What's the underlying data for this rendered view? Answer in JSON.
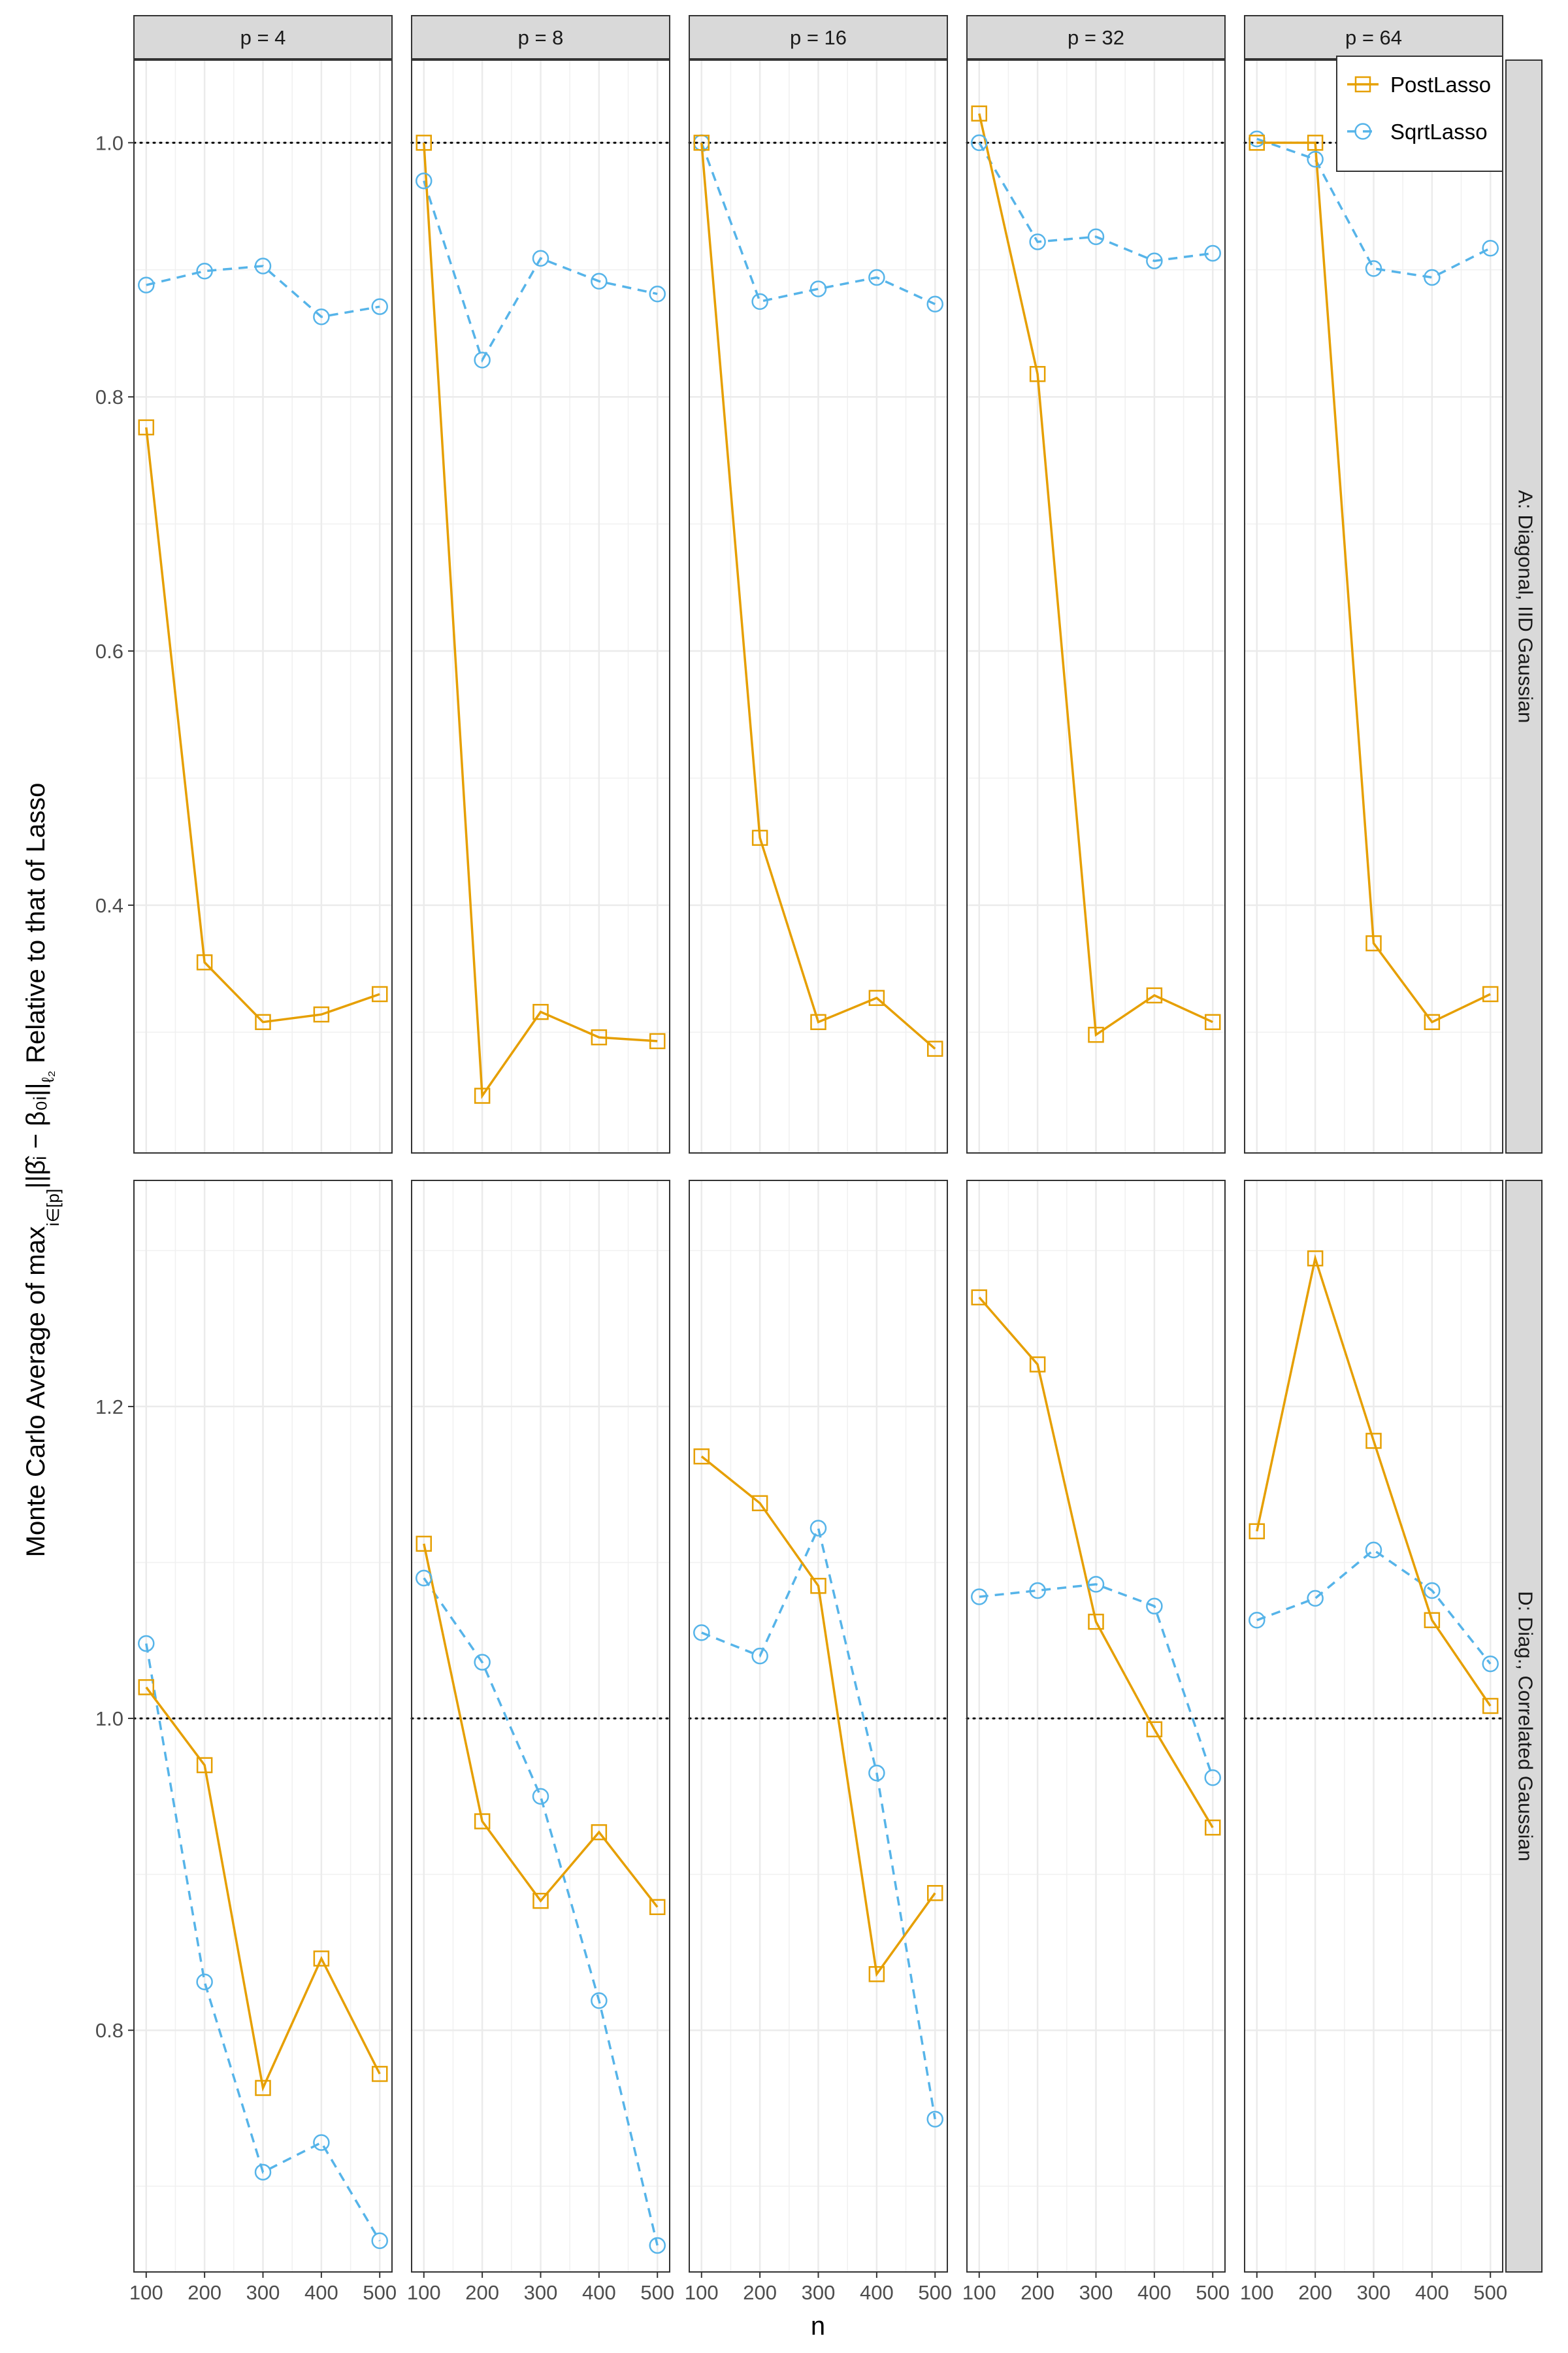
{
  "chart_data": {
    "type": "line",
    "xlabel": "n",
    "ylabel": {
      "prefix": "Monte Carlo Average of max",
      "subscript": "i∈[p]",
      "formula": "||β̂ᵢ − β₀ᵢ||",
      "norm": "ℓ₂",
      "suffix": " Relative to that of Lasso"
    },
    "columns": [
      "p = 4",
      "p = 8",
      "p = 16",
      "p = 32",
      "p = 64"
    ],
    "rows": [
      "A: Diagonal, IID Gaussian",
      "D: Diag., Correlated Gaussian"
    ],
    "x": [
      100,
      200,
      300,
      400,
      500
    ],
    "x_tick_labels": [
      "100",
      "200",
      "300",
      "400",
      "500"
    ],
    "reference_line": 1.0,
    "legend": {
      "placement": "top-right",
      "entries": [
        "PostLasso",
        "SqrtLasso"
      ]
    },
    "colors": {
      "PostLasso": "#E69F00",
      "SqrtLasso": "#56B4E9"
    },
    "row_axes": [
      {
        "ylim": [
          0.205,
          1.065
        ],
        "ticks": [
          0.4,
          0.6,
          0.8,
          1.0
        ],
        "tick_labels": [
          "0.4",
          "0.6",
          "0.8",
          "1.0"
        ]
      },
      {
        "ylim": [
          0.645,
          1.345
        ],
        "ticks": [
          0.8,
          1.0,
          1.2
        ],
        "tick_labels": [
          "0.8",
          "1.0",
          "1.2"
        ]
      }
    ],
    "panels": [
      {
        "row": 0,
        "col": 0,
        "PostLasso": [
          0.776,
          0.355,
          0.308,
          0.314,
          0.33
        ],
        "SqrtLasso": [
          0.888,
          0.899,
          0.903,
          0.863,
          0.871
        ]
      },
      {
        "row": 0,
        "col": 1,
        "PostLasso": [
          1.0,
          0.25,
          0.316,
          0.296,
          0.293
        ],
        "SqrtLasso": [
          0.97,
          0.829,
          0.909,
          0.891,
          0.881
        ]
      },
      {
        "row": 0,
        "col": 2,
        "PostLasso": [
          1.0,
          0.453,
          0.308,
          0.327,
          0.287
        ],
        "SqrtLasso": [
          1.0,
          0.875,
          0.885,
          0.894,
          0.873
        ]
      },
      {
        "row": 0,
        "col": 3,
        "PostLasso": [
          1.023,
          0.818,
          0.298,
          0.329,
          0.308
        ],
        "SqrtLasso": [
          1.0,
          0.922,
          0.926,
          0.907,
          0.913
        ]
      },
      {
        "row": 0,
        "col": 4,
        "PostLasso": [
          1.0,
          1.0,
          0.37,
          0.308,
          0.33
        ],
        "SqrtLasso": [
          1.003,
          0.987,
          0.901,
          0.894,
          0.917
        ]
      },
      {
        "row": 1,
        "col": 0,
        "PostLasso": [
          1.02,
          0.97,
          0.763,
          0.846,
          0.772
        ],
        "SqrtLasso": [
          1.048,
          0.831,
          0.709,
          0.728,
          0.665
        ]
      },
      {
        "row": 1,
        "col": 1,
        "PostLasso": [
          1.112,
          0.934,
          0.883,
          0.927,
          0.879
        ],
        "SqrtLasso": [
          1.09,
          1.036,
          0.95,
          0.819,
          0.662
        ]
      },
      {
        "row": 1,
        "col": 2,
        "PostLasso": [
          1.168,
          1.138,
          1.085,
          0.836,
          0.888
        ],
        "SqrtLasso": [
          1.055,
          1.04,
          1.122,
          0.965,
          0.743
        ]
      },
      {
        "row": 1,
        "col": 3,
        "PostLasso": [
          1.27,
          1.227,
          1.062,
          0.993,
          0.93
        ],
        "SqrtLasso": [
          1.078,
          1.082,
          1.086,
          1.072,
          0.962
        ]
      },
      {
        "row": 1,
        "col": 4,
        "PostLasso": [
          1.12,
          1.295,
          1.178,
          1.063,
          1.008
        ],
        "SqrtLasso": [
          1.063,
          1.077,
          1.108,
          1.082,
          1.035
        ]
      }
    ]
  }
}
